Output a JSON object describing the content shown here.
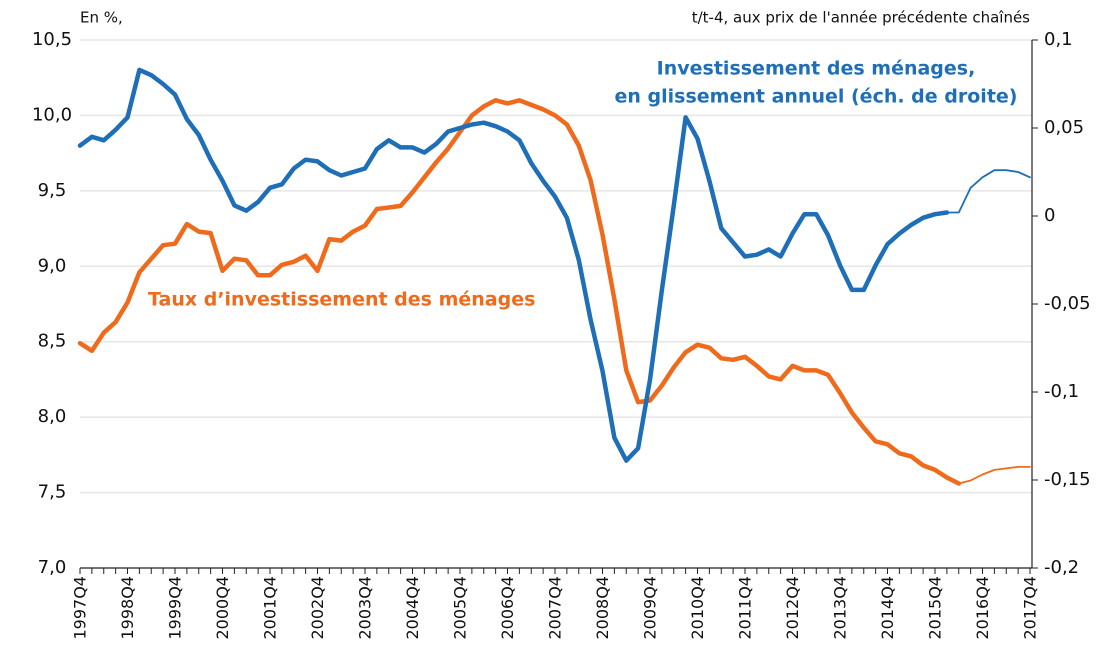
{
  "chart_data": {
    "type": "line",
    "unit_left": "En %,",
    "unit_right": "t/t-4, aux prix de l'année précédente chaînés",
    "categories": [
      "1997Q4",
      null,
      null,
      null,
      "1998Q4",
      null,
      null,
      null,
      "1999Q4",
      null,
      null,
      null,
      "2000Q4",
      null,
      null,
      null,
      "2001Q4",
      null,
      null,
      null,
      "2002Q4",
      null,
      null,
      null,
      "2003Q4",
      null,
      null,
      null,
      "2004Q4",
      null,
      null,
      null,
      "2005Q4",
      null,
      null,
      null,
      "2006Q4",
      null,
      null,
      null,
      "2007Q4",
      null,
      null,
      null,
      "2008Q4",
      null,
      null,
      null,
      "2009Q4",
      null,
      null,
      null,
      "2010Q4",
      null,
      null,
      null,
      "2011Q4",
      null,
      null,
      null,
      "2012Q4",
      null,
      null,
      null,
      "2013Q4",
      null,
      null,
      null,
      "2014Q4",
      null,
      null,
      null,
      "2015Q4",
      null,
      null,
      null,
      "2016Q4",
      null,
      null,
      null,
      "2017Q4"
    ],
    "ylim": [
      7.0,
      10.5
    ],
    "yticks": [
      {
        "value": 7.0,
        "label": "7,0"
      },
      {
        "value": 7.5,
        "label": "7,5"
      },
      {
        "value": 8.0,
        "label": "8,0"
      },
      {
        "value": 8.5,
        "label": "8,5"
      },
      {
        "value": 9.0,
        "label": "9,0"
      },
      {
        "value": 9.5,
        "label": "9,5"
      },
      {
        "value": 10.0,
        "label": "10,0"
      },
      {
        "value": 10.5,
        "label": "10,5"
      }
    ],
    "y2lim": [
      -0.2,
      0.1
    ],
    "y2ticks": [
      {
        "value": -0.2,
        "label": "-0,2"
      },
      {
        "value": -0.15,
        "label": "-0,15"
      },
      {
        "value": -0.1,
        "label": "-0,1"
      },
      {
        "value": -0.05,
        "label": "-0,05"
      },
      0,
      {
        "value": 0.05,
        "label": "0,05"
      },
      {
        "value": 0.1,
        "label": "0,1"
      }
    ],
    "grid": true,
    "annotations": [
      {
        "text": "Investissement des ménages,",
        "color": "#1f6fb8"
      },
      {
        "text": "en glissement annuel (éch. de droite)",
        "color": "#1f6fb8"
      },
      {
        "text": "Taux d’investissement des ménages",
        "color": "#f06a1c"
      }
    ],
    "series": [
      {
        "color": "#f06a1c",
        "style": "thick",
        "axis": "y",
        "values": [
          8.49,
          8.44,
          8.56,
          8.63,
          8.76,
          8.96,
          9.05,
          9.14,
          9.15,
          9.28,
          9.23,
          9.22,
          8.97,
          9.05,
          9.04,
          8.94,
          8.94,
          9.01,
          9.03,
          9.07,
          8.97,
          9.18,
          9.17,
          9.23,
          9.27,
          9.38,
          9.39,
          9.4,
          9.49,
          9.59,
          9.69,
          9.78,
          9.89,
          10.0,
          10.06,
          10.1,
          10.08,
          10.1,
          10.07,
          10.04,
          10.0,
          9.94,
          9.8,
          9.57,
          9.21,
          8.78,
          8.31,
          8.1,
          8.11,
          8.21,
          8.33,
          8.43,
          8.48,
          8.46,
          8.39,
          8.38,
          8.4,
          8.34,
          8.27,
          8.25,
          8.34,
          8.31,
          8.31,
          8.28,
          8.16,
          8.03,
          7.93,
          7.84,
          7.82,
          7.76,
          7.74,
          7.68,
          7.65,
          7.6,
          7.56,
          null,
          null,
          null,
          null,
          null,
          null
        ]
      },
      {
        "color": "#f06a1c",
        "style": "thin",
        "axis": "y",
        "values": [
          null,
          null,
          null,
          null,
          null,
          null,
          null,
          null,
          null,
          null,
          null,
          null,
          null,
          null,
          null,
          null,
          null,
          null,
          null,
          null,
          null,
          null,
          null,
          null,
          null,
          null,
          null,
          null,
          null,
          null,
          null,
          null,
          null,
          null,
          null,
          null,
          null,
          null,
          null,
          null,
          null,
          null,
          null,
          null,
          null,
          null,
          null,
          null,
          null,
          null,
          null,
          null,
          null,
          null,
          null,
          null,
          null,
          null,
          null,
          null,
          null,
          null,
          null,
          null,
          null,
          null,
          null,
          null,
          null,
          null,
          null,
          null,
          null,
          null,
          7.56,
          7.58,
          7.62,
          7.65,
          7.66,
          7.67,
          7.67
        ]
      },
      {
        "color": "#1f6fb8",
        "style": "thick",
        "axis": "y2",
        "values": [
          0.04,
          0.045,
          0.043,
          0.049,
          0.056,
          0.083,
          0.08,
          0.075,
          0.069,
          0.055,
          0.046,
          0.032,
          0.02,
          0.006,
          0.003,
          0.008,
          0.016,
          0.018,
          0.027,
          0.032,
          0.031,
          0.026,
          0.023,
          0.025,
          0.027,
          0.038,
          0.043,
          0.039,
          0.039,
          0.036,
          0.041,
          0.048,
          0.05,
          0.052,
          0.053,
          0.051,
          0.048,
          0.043,
          0.03,
          0.02,
          0.011,
          -0.001,
          -0.025,
          -0.059,
          -0.088,
          -0.126,
          -0.139,
          -0.132,
          -0.093,
          -0.042,
          0.006,
          0.056,
          0.044,
          0.02,
          -0.007,
          -0.015,
          -0.023,
          -0.022,
          -0.019,
          -0.023,
          -0.01,
          0.001,
          0.001,
          -0.011,
          -0.028,
          -0.042,
          -0.042,
          -0.028,
          -0.016,
          -0.01,
          -0.005,
          -0.001,
          0.001,
          0.002,
          null,
          null,
          null,
          null,
          null,
          null,
          null
        ]
      },
      {
        "color": "#1f6fb8",
        "style": "thin",
        "axis": "y2",
        "values": [
          null,
          null,
          null,
          null,
          null,
          null,
          null,
          null,
          null,
          null,
          null,
          null,
          null,
          null,
          null,
          null,
          null,
          null,
          null,
          null,
          null,
          null,
          null,
          null,
          null,
          null,
          null,
          null,
          null,
          null,
          null,
          null,
          null,
          null,
          null,
          null,
          null,
          null,
          null,
          null,
          null,
          null,
          null,
          null,
          null,
          null,
          null,
          null,
          null,
          null,
          null,
          null,
          null,
          null,
          null,
          null,
          null,
          null,
          null,
          null,
          null,
          null,
          null,
          null,
          null,
          null,
          null,
          null,
          null,
          null,
          null,
          null,
          null,
          0.002,
          0.002,
          0.016,
          0.022,
          0.026,
          0.026,
          0.025,
          0.022
        ]
      }
    ]
  }
}
